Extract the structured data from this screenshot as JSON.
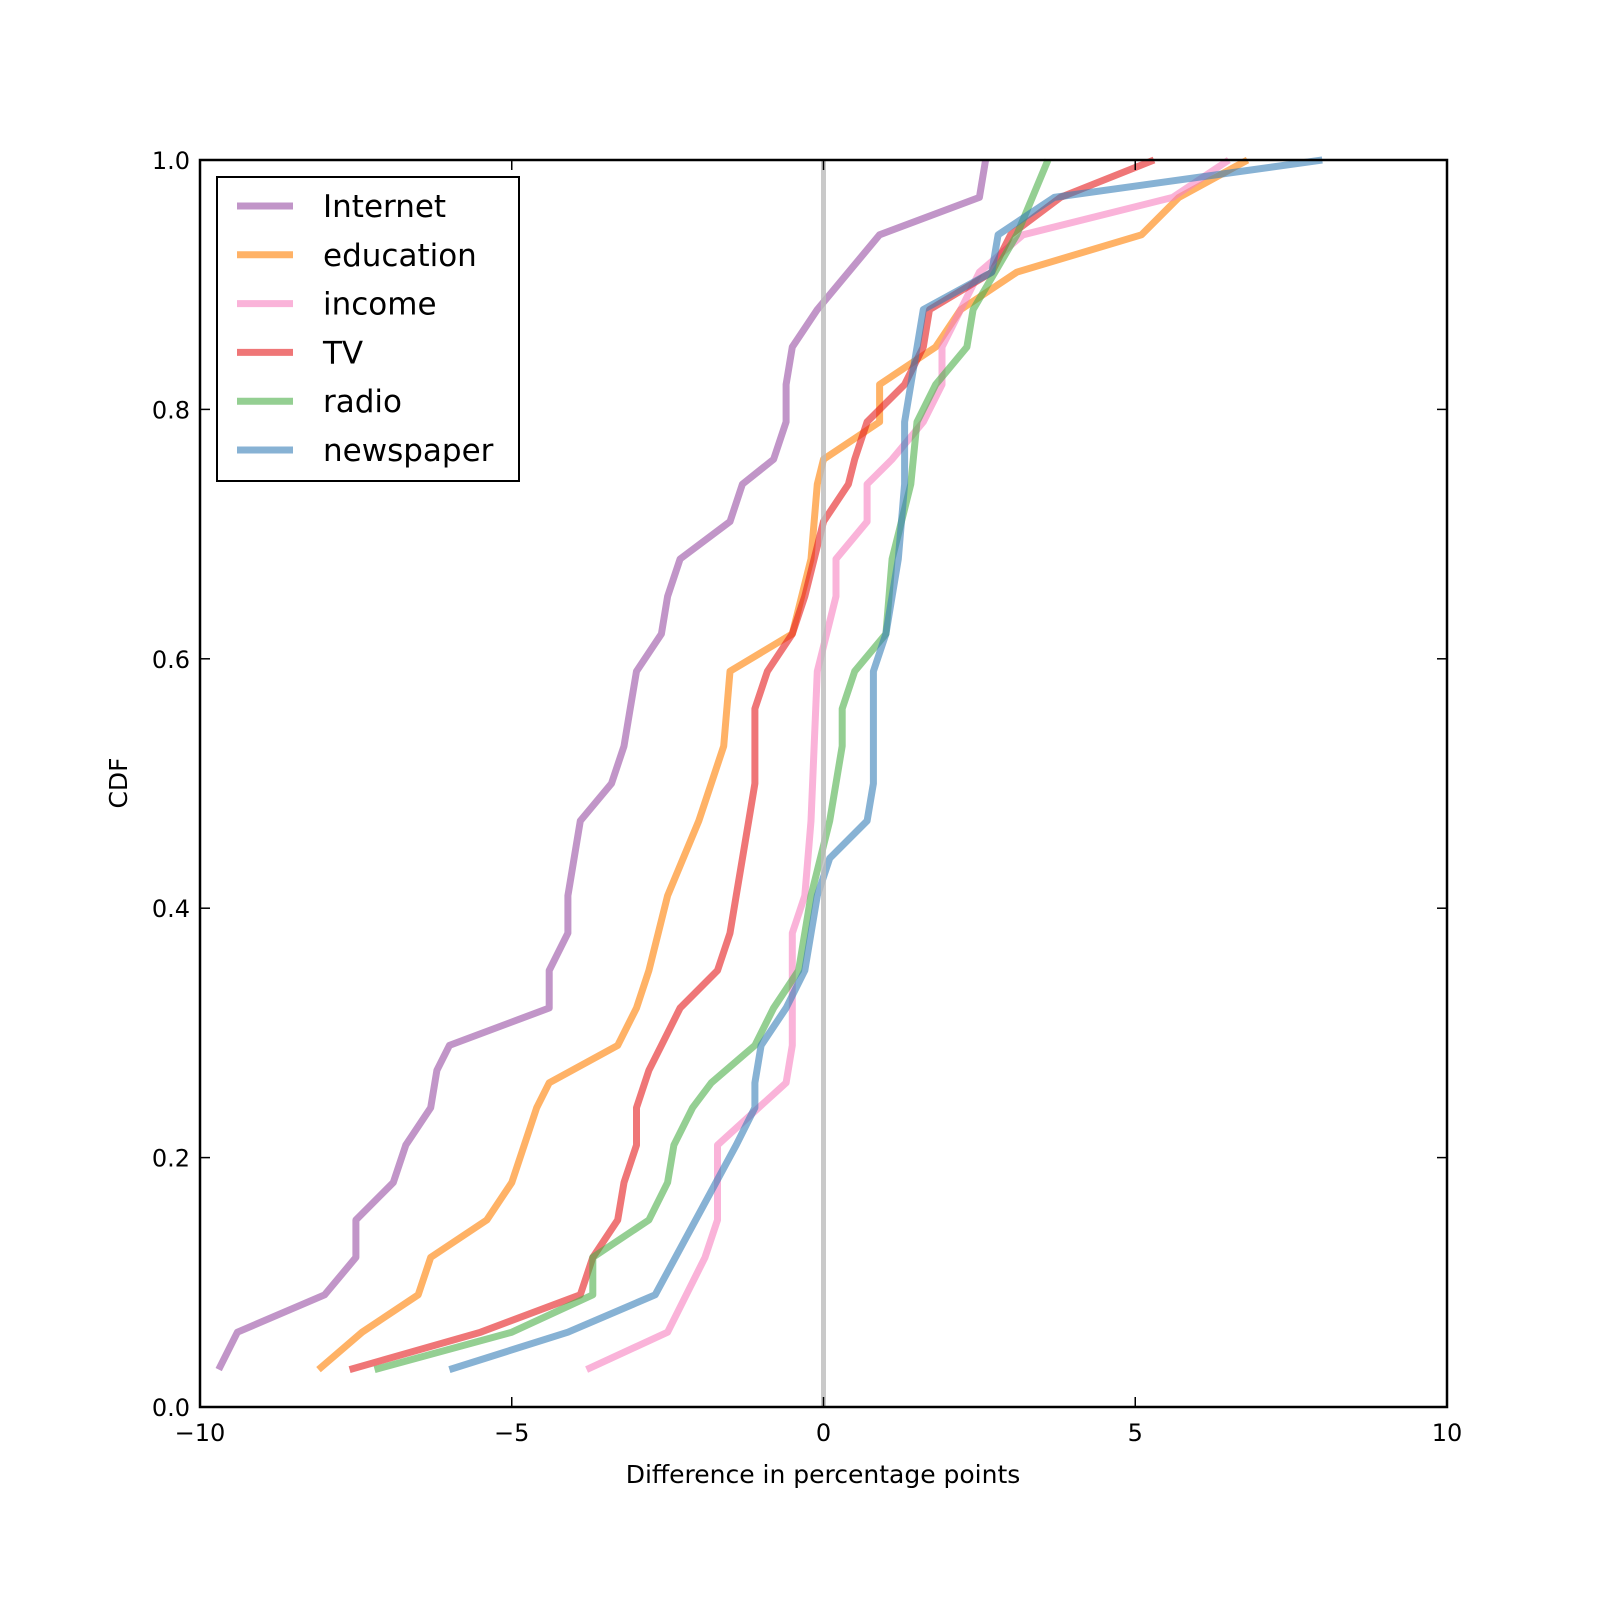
{
  "chart_data": {
    "type": "line",
    "title": "",
    "xlabel": "Difference in percentage points",
    "ylabel": "CDF",
    "xlim": [
      -10,
      10
    ],
    "ylim": [
      0,
      1
    ],
    "xticks": [
      -10,
      -5,
      0,
      5,
      10
    ],
    "xtick_labels": [
      "−10",
      "−5",
      "0",
      "5",
      "10"
    ],
    "yticks": [
      0,
      0.2,
      0.4,
      0.6,
      0.8,
      1
    ],
    "ytick_labels": [
      "0.0",
      "0.2",
      "0.4",
      "0.6",
      "0.8",
      "1.0"
    ],
    "grid": false,
    "legend_position": "top-left",
    "reference_line": {
      "x": 0,
      "color": "#bbbbbb"
    },
    "series": [
      {
        "name": "Internet",
        "color": "#984ea3",
        "points": [
          [
            -9.7,
            0.03
          ],
          [
            -9.4,
            0.06
          ],
          [
            -8.0,
            0.09
          ],
          [
            -7.5,
            0.12
          ],
          [
            -7.5,
            0.15
          ],
          [
            -6.9,
            0.18
          ],
          [
            -6.7,
            0.21
          ],
          [
            -6.3,
            0.24
          ],
          [
            -6.2,
            0.27
          ],
          [
            -6.0,
            0.29
          ],
          [
            -4.4,
            0.32
          ],
          [
            -4.4,
            0.35
          ],
          [
            -4.1,
            0.38
          ],
          [
            -4.1,
            0.41
          ],
          [
            -3.9,
            0.47
          ],
          [
            -3.4,
            0.5
          ],
          [
            -3.2,
            0.53
          ],
          [
            -3.1,
            0.56
          ],
          [
            -3.0,
            0.59
          ],
          [
            -2.6,
            0.62
          ],
          [
            -2.5,
            0.65
          ],
          [
            -2.3,
            0.68
          ],
          [
            -1.5,
            0.71
          ],
          [
            -1.3,
            0.74
          ],
          [
            -0.8,
            0.76
          ],
          [
            -0.6,
            0.79
          ],
          [
            -0.6,
            0.82
          ],
          [
            -0.5,
            0.85
          ],
          [
            -0.1,
            0.88
          ],
          [
            0.4,
            0.91
          ],
          [
            0.9,
            0.94
          ],
          [
            2.5,
            0.97
          ],
          [
            2.6,
            1.0
          ]
        ]
      },
      {
        "name": "education",
        "color": "#ff7f00",
        "points": [
          [
            -8.1,
            0.03
          ],
          [
            -7.4,
            0.06
          ],
          [
            -6.5,
            0.09
          ],
          [
            -6.3,
            0.12
          ],
          [
            -5.4,
            0.15
          ],
          [
            -5.0,
            0.18
          ],
          [
            -4.6,
            0.24
          ],
          [
            -4.4,
            0.26
          ],
          [
            -3.3,
            0.29
          ],
          [
            -3.0,
            0.32
          ],
          [
            -2.8,
            0.35
          ],
          [
            -2.5,
            0.41
          ],
          [
            -2.0,
            0.47
          ],
          [
            -1.6,
            0.53
          ],
          [
            -1.5,
            0.59
          ],
          [
            -0.5,
            0.62
          ],
          [
            -0.2,
            0.68
          ],
          [
            -0.1,
            0.74
          ],
          [
            0.0,
            0.76
          ],
          [
            0.9,
            0.79
          ],
          [
            0.9,
            0.82
          ],
          [
            1.8,
            0.85
          ],
          [
            2.2,
            0.88
          ],
          [
            3.1,
            0.91
          ],
          [
            5.1,
            0.94
          ],
          [
            5.7,
            0.97
          ],
          [
            6.8,
            1.0
          ]
        ]
      },
      {
        "name": "income",
        "color": "#f781bf",
        "points": [
          [
            -3.8,
            0.03
          ],
          [
            -2.5,
            0.06
          ],
          [
            -1.9,
            0.12
          ],
          [
            -1.7,
            0.15
          ],
          [
            -1.7,
            0.21
          ],
          [
            -0.6,
            0.26
          ],
          [
            -0.5,
            0.29
          ],
          [
            -0.5,
            0.38
          ],
          [
            -0.3,
            0.41
          ],
          [
            -0.2,
            0.47
          ],
          [
            -0.1,
            0.59
          ],
          [
            0.2,
            0.65
          ],
          [
            0.2,
            0.68
          ],
          [
            0.7,
            0.71
          ],
          [
            0.7,
            0.74
          ],
          [
            1.1,
            0.76
          ],
          [
            1.6,
            0.79
          ],
          [
            1.9,
            0.82
          ],
          [
            1.9,
            0.85
          ],
          [
            2.5,
            0.91
          ],
          [
            3.2,
            0.94
          ],
          [
            5.6,
            0.97
          ],
          [
            6.5,
            1.0
          ]
        ]
      },
      {
        "name": "TV",
        "color": "#e41a1c",
        "points": [
          [
            -7.6,
            0.03
          ],
          [
            -5.5,
            0.06
          ],
          [
            -3.9,
            0.09
          ],
          [
            -3.7,
            0.12
          ],
          [
            -3.3,
            0.15
          ],
          [
            -3.2,
            0.18
          ],
          [
            -3.0,
            0.21
          ],
          [
            -3.0,
            0.24
          ],
          [
            -2.8,
            0.27
          ],
          [
            -2.6,
            0.29
          ],
          [
            -2.3,
            0.32
          ],
          [
            -1.7,
            0.35
          ],
          [
            -1.5,
            0.38
          ],
          [
            -1.4,
            0.41
          ],
          [
            -1.2,
            0.47
          ],
          [
            -1.1,
            0.5
          ],
          [
            -1.1,
            0.56
          ],
          [
            -0.9,
            0.59
          ],
          [
            -0.5,
            0.62
          ],
          [
            -0.3,
            0.65
          ],
          [
            0.0,
            0.71
          ],
          [
            0.4,
            0.74
          ],
          [
            0.5,
            0.76
          ],
          [
            0.7,
            0.79
          ],
          [
            1.3,
            0.82
          ],
          [
            1.6,
            0.85
          ],
          [
            1.7,
            0.88
          ],
          [
            2.7,
            0.91
          ],
          [
            3.0,
            0.94
          ],
          [
            3.8,
            0.97
          ],
          [
            5.3,
            1.0
          ]
        ]
      },
      {
        "name": "radio",
        "color": "#4daf4a",
        "points": [
          [
            -7.2,
            0.03
          ],
          [
            -5.0,
            0.06
          ],
          [
            -3.7,
            0.09
          ],
          [
            -3.7,
            0.12
          ],
          [
            -2.8,
            0.15
          ],
          [
            -2.5,
            0.18
          ],
          [
            -2.4,
            0.21
          ],
          [
            -2.1,
            0.24
          ],
          [
            -1.8,
            0.26
          ],
          [
            -1.1,
            0.29
          ],
          [
            -0.8,
            0.32
          ],
          [
            -0.4,
            0.35
          ],
          [
            -0.2,
            0.41
          ],
          [
            0.1,
            0.47
          ],
          [
            0.3,
            0.53
          ],
          [
            0.3,
            0.56
          ],
          [
            0.5,
            0.59
          ],
          [
            1.0,
            0.62
          ],
          [
            1.1,
            0.68
          ],
          [
            1.4,
            0.74
          ],
          [
            1.5,
            0.79
          ],
          [
            1.8,
            0.82
          ],
          [
            2.3,
            0.85
          ],
          [
            2.4,
            0.88
          ],
          [
            3.1,
            0.94
          ],
          [
            3.6,
            1.0
          ]
        ]
      },
      {
        "name": "newspaper",
        "color": "#377eb8",
        "points": [
          [
            -6.0,
            0.03
          ],
          [
            -4.1,
            0.06
          ],
          [
            -2.7,
            0.09
          ],
          [
            -1.4,
            0.21
          ],
          [
            -1.1,
            0.24
          ],
          [
            -1.1,
            0.26
          ],
          [
            -1.0,
            0.29
          ],
          [
            -0.6,
            0.32
          ],
          [
            -0.3,
            0.35
          ],
          [
            -0.1,
            0.41
          ],
          [
            0.1,
            0.44
          ],
          [
            0.7,
            0.47
          ],
          [
            0.8,
            0.5
          ],
          [
            0.8,
            0.59
          ],
          [
            1.0,
            0.62
          ],
          [
            1.1,
            0.65
          ],
          [
            1.2,
            0.68
          ],
          [
            1.3,
            0.74
          ],
          [
            1.3,
            0.79
          ],
          [
            1.6,
            0.88
          ],
          [
            2.7,
            0.91
          ],
          [
            2.8,
            0.94
          ],
          [
            3.7,
            0.97
          ],
          [
            8.0,
            1.0
          ]
        ]
      }
    ]
  }
}
